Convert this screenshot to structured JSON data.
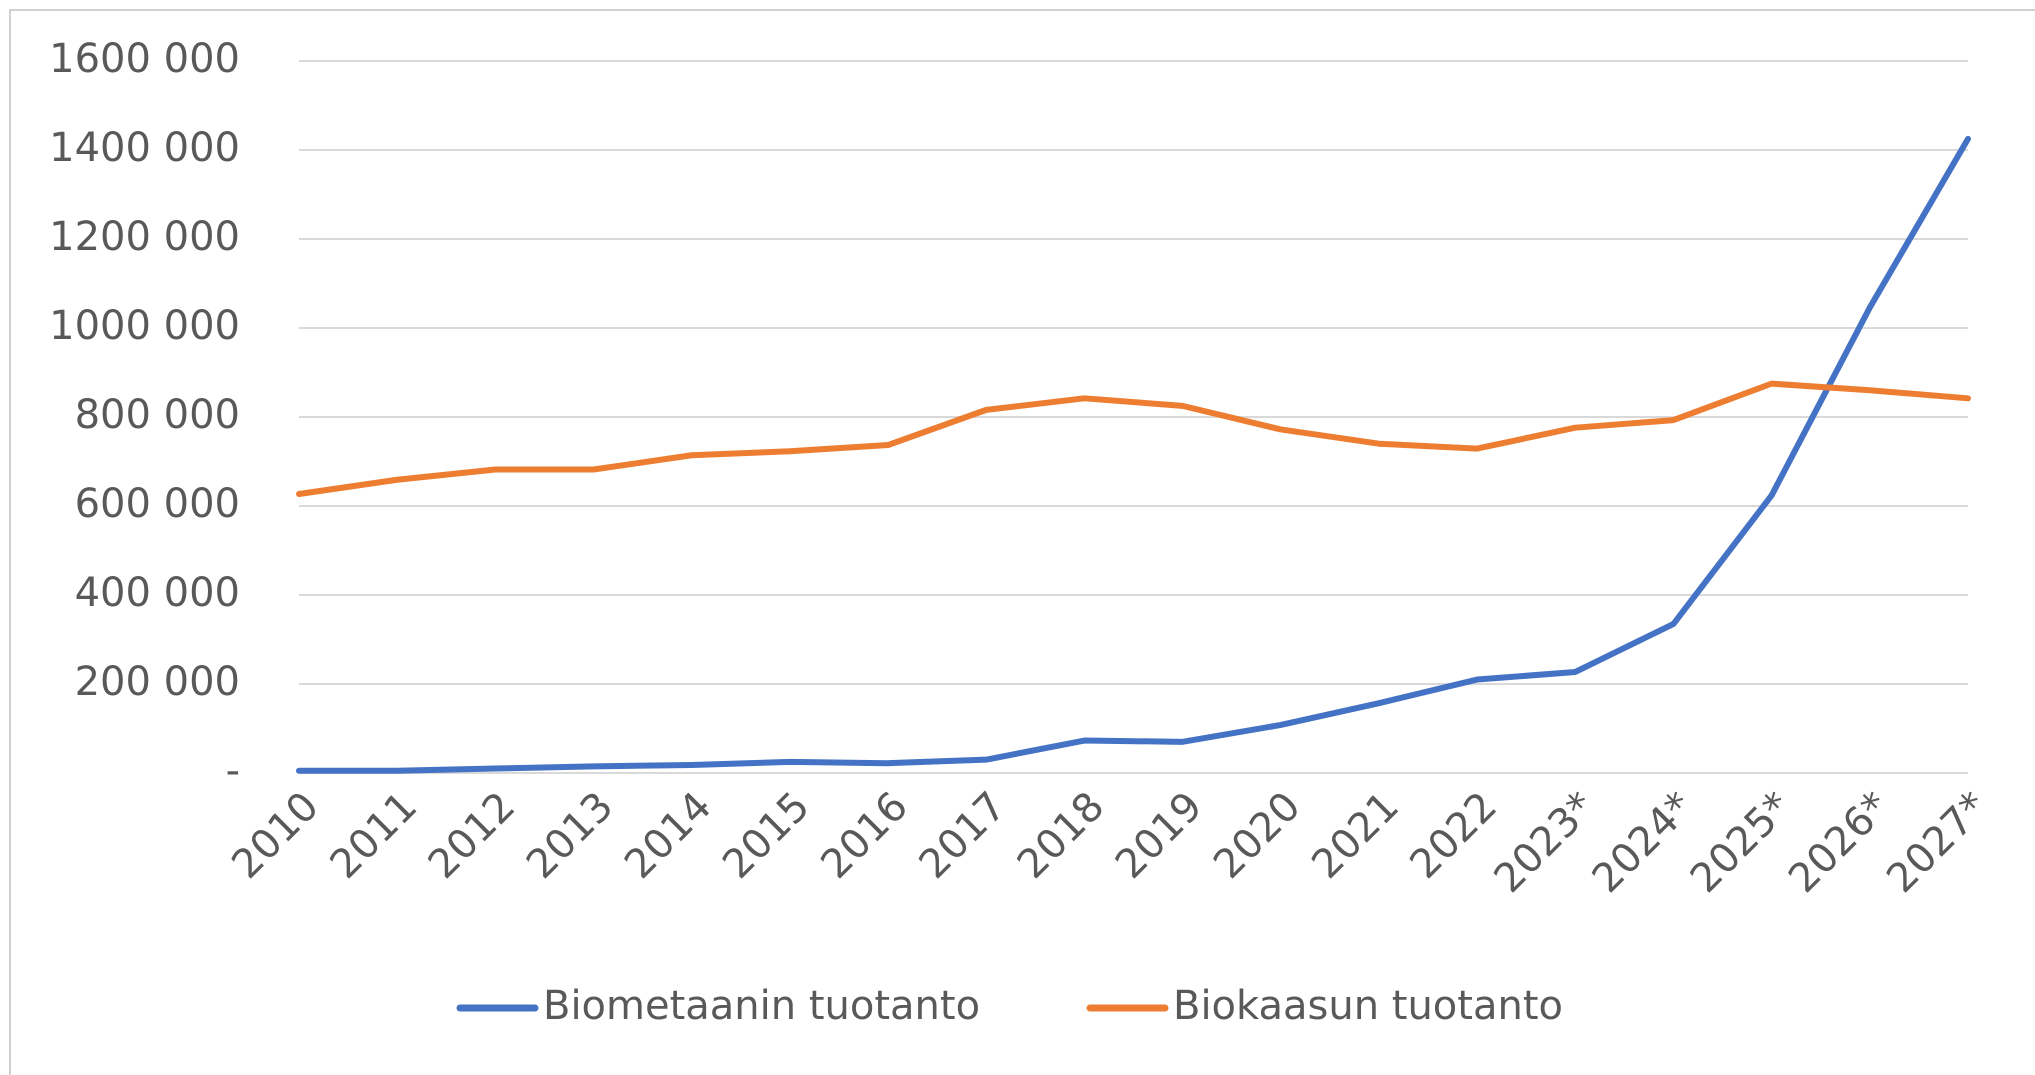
{
  "chart_data": {
    "type": "line",
    "categories": [
      "2010",
      "2011",
      "2012",
      "2013",
      "2014",
      "2015",
      "2016",
      "2017",
      "2018",
      "2019",
      "2020",
      "2021",
      "2022",
      "2023*",
      "2024*",
      "2025*",
      "2026*",
      "2027*"
    ],
    "series": [
      {
        "name": "Biometaanin tuotanto",
        "color": "#4472c4",
        "values": [
          5000,
          5000,
          10000,
          15000,
          18000,
          25000,
          22000,
          30000,
          73000,
          70000,
          108000,
          157000,
          210000,
          227000,
          335000,
          624000,
          1046000,
          1425000
        ]
      },
      {
        "name": "Biokaasun tuotanto",
        "color": "#ed7d31",
        "values": [
          627000,
          659000,
          682000,
          682000,
          714000,
          723000,
          737000,
          816000,
          842000,
          825000,
          772000,
          740000,
          729000,
          776000,
          793000,
          875000,
          860000,
          842000
        ]
      }
    ],
    "ylim": [
      0,
      1600000
    ],
    "yticks": [
      {
        "value": 0,
        "label": "-"
      },
      {
        "value": 200000,
        "label": "200 000"
      },
      {
        "value": 400000,
        "label": "400 000"
      },
      {
        "value": 600000,
        "label": "600 000"
      },
      {
        "value": 800000,
        "label": "800 000"
      },
      {
        "value": 1000000,
        "label": "1000 000"
      },
      {
        "value": 1200000,
        "label": "1200 000"
      },
      {
        "value": 1400000,
        "label": "1400 000"
      },
      {
        "value": 1600000,
        "label": "1600 000"
      }
    ],
    "grid": true,
    "legend": "bottom"
  }
}
